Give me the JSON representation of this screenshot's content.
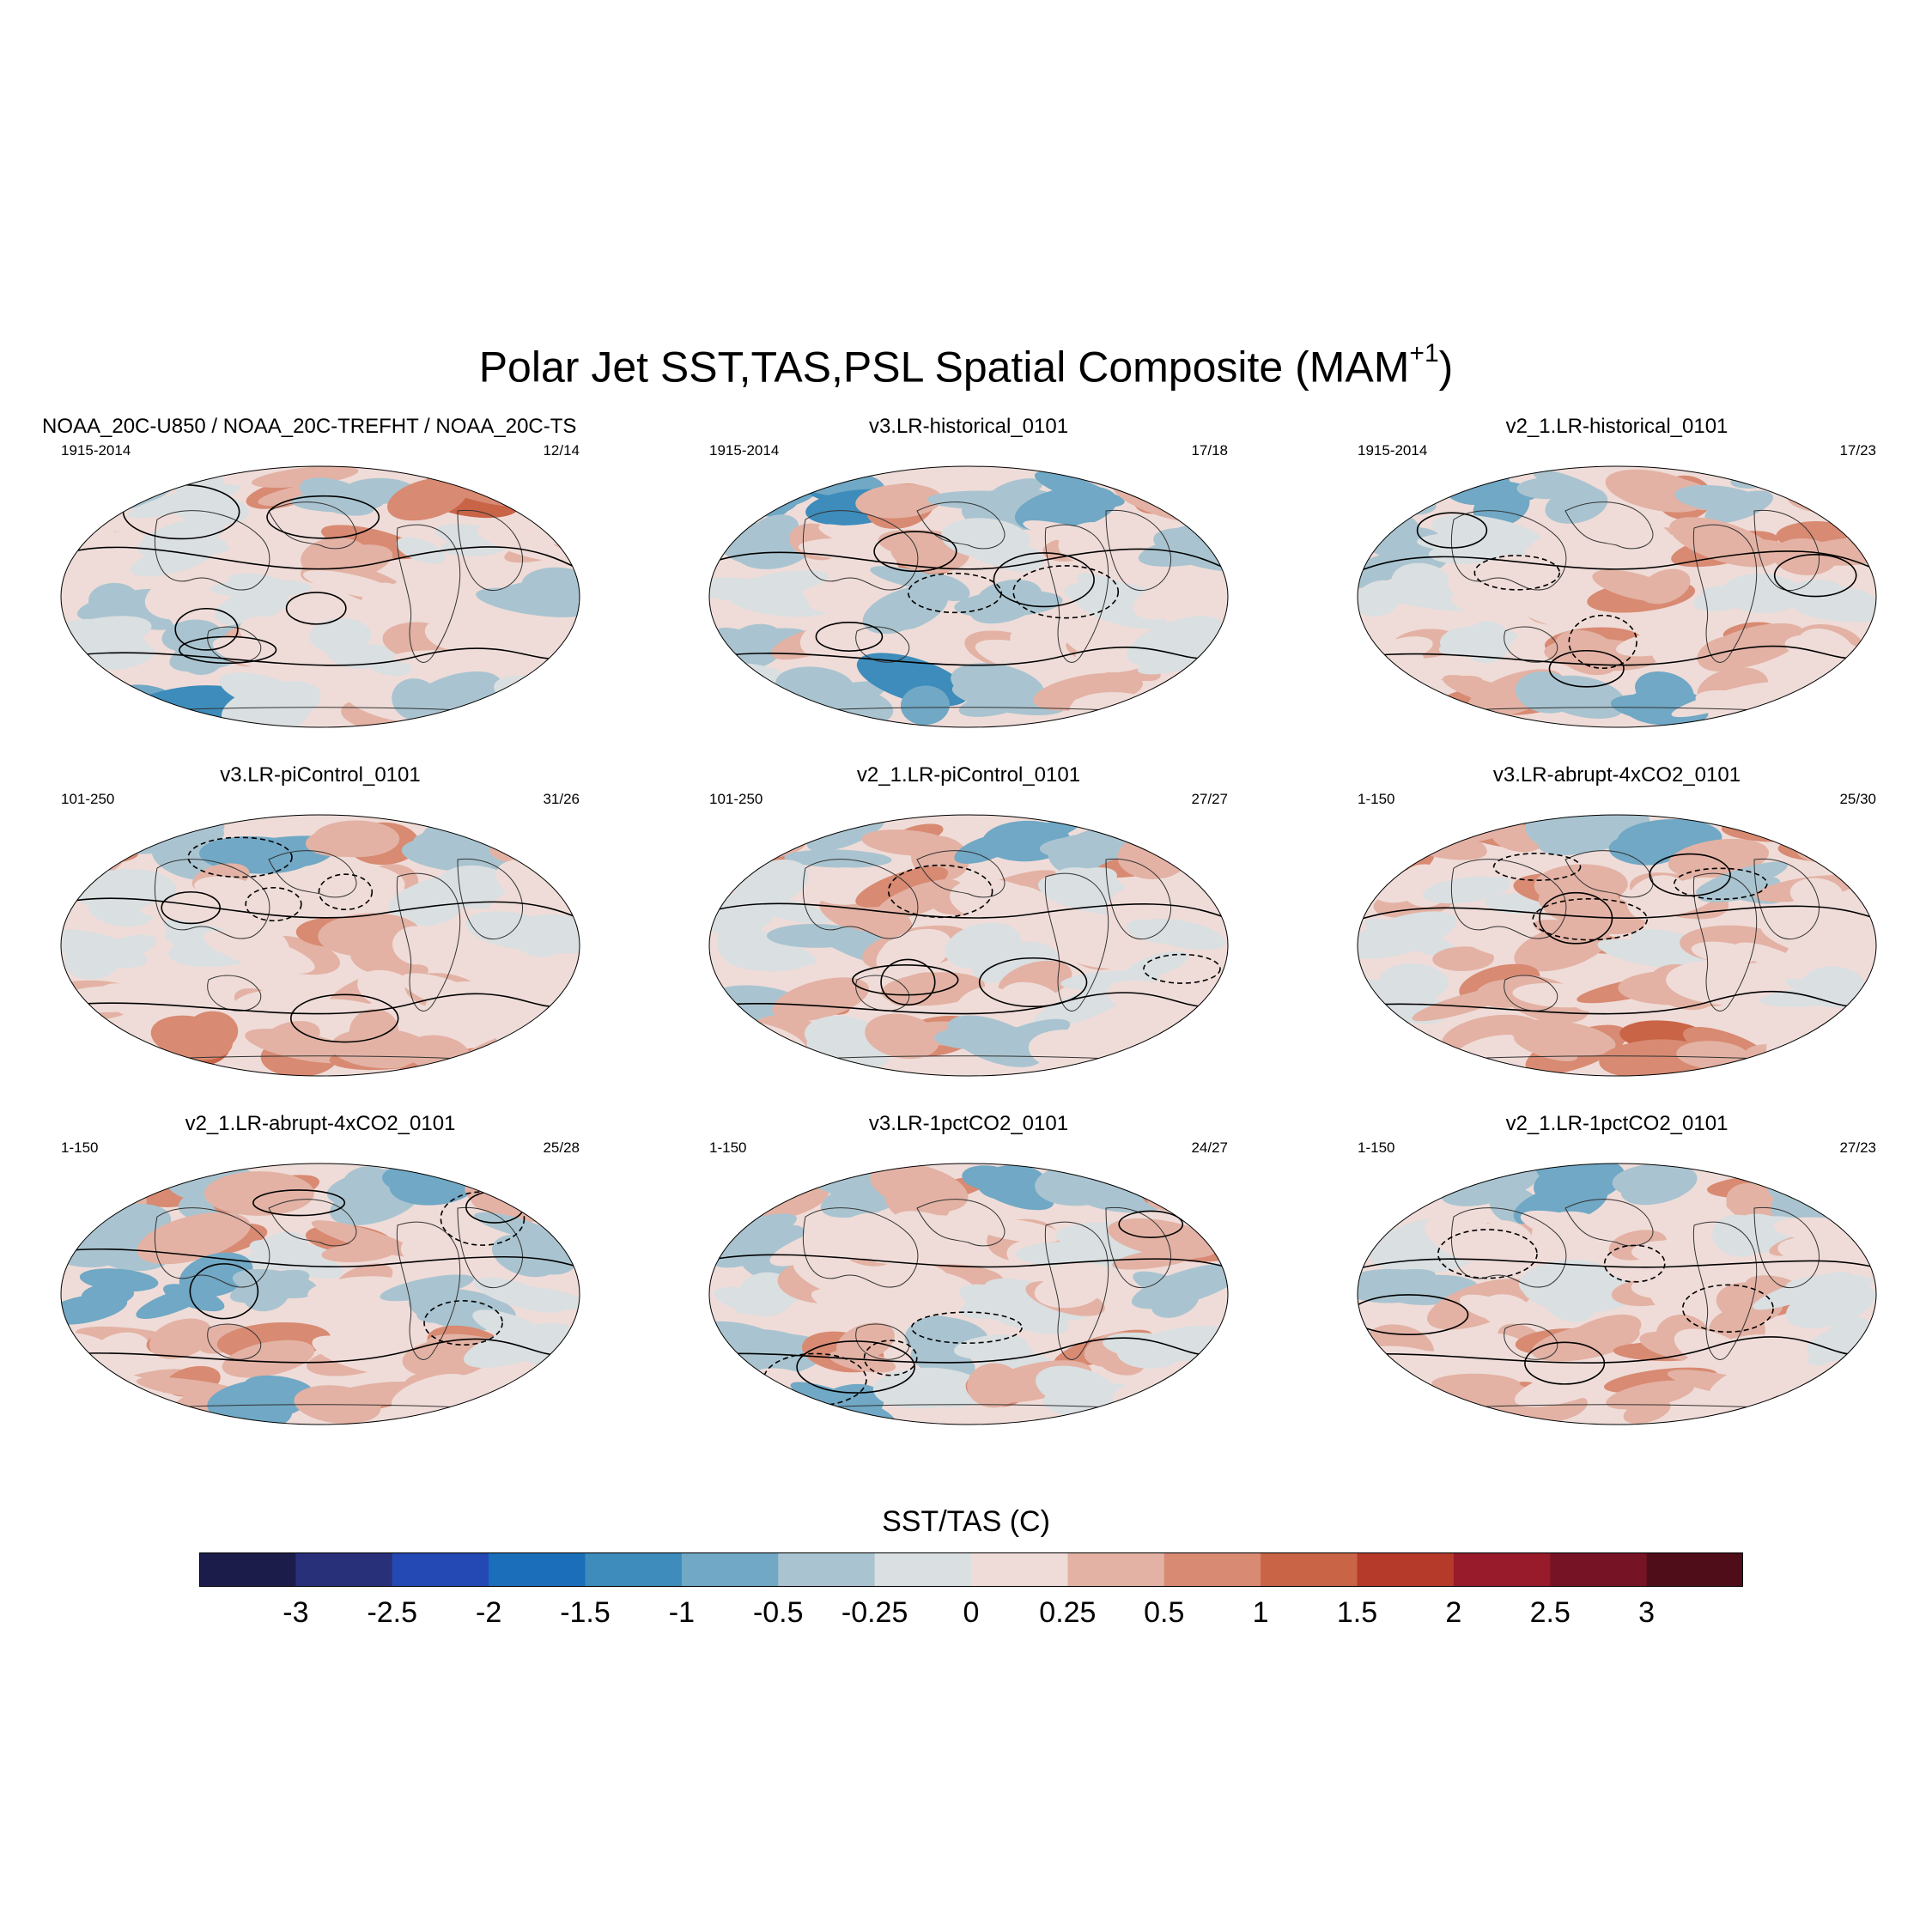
{
  "figure": {
    "title": "Polar Jet SST,TAS,PSL Spatial Composite (MAM",
    "title_sup": "+1",
    "title_close": ")"
  },
  "chart_data": {
    "type": "heatmap",
    "projection": "Robinson (global maps)",
    "variable": "SST/TAS (C)",
    "contour_variable": "PSL",
    "panels": [
      {
        "title": "NOAA_20C-U850 / NOAA_20C-TREFHT / NOAA_20C-TS",
        "period": "1915-2014",
        "count": "12/14",
        "pattern": [
          [
            -0.5,
            -0.25,
            0.5,
            -0.5,
            1,
            -1
          ],
          [
            0.25,
            -0.25,
            0,
            0.5,
            -0.25,
            0.25
          ],
          [
            -0.5,
            0,
            -0.25,
            0.25,
            0,
            -0.5
          ],
          [
            -0.25,
            -0.5,
            0.25,
            -0.25,
            0.25,
            0
          ],
          [
            -1,
            -1.5,
            -0.25,
            0.25,
            -0.5,
            -0.25
          ]
        ]
      },
      {
        "title": "v3.LR-historical_0101",
        "period": "1915-2014",
        "count": "17/18",
        "pattern": [
          [
            -1,
            -1.5,
            0.5,
            -0.5,
            -1,
            0.5
          ],
          [
            -0.5,
            0.25,
            0.5,
            -0.25,
            0.25,
            -0.5
          ],
          [
            -0.25,
            0,
            -0.5,
            -0.5,
            -0.25,
            0
          ],
          [
            -0.5,
            0.25,
            0,
            0.25,
            0.25,
            -0.25
          ],
          [
            -0.25,
            -0.5,
            -1.5,
            -0.5,
            0.25,
            0
          ]
        ]
      },
      {
        "title": "v2_1.LR-historical_0101",
        "period": "1915-2014",
        "count": "17/23",
        "pattern": [
          [
            -0.5,
            -1,
            -0.5,
            0.5,
            -0.5,
            0.5
          ],
          [
            -0.5,
            -0.25,
            0,
            0.25,
            0.5,
            0.5
          ],
          [
            -0.25,
            0,
            0.25,
            0.5,
            -0.25,
            -0.25
          ],
          [
            0.25,
            -0.25,
            0.5,
            0.25,
            0.5,
            0.25
          ],
          [
            0.25,
            0.5,
            -0.5,
            -1,
            0.25,
            0
          ]
        ]
      },
      {
        "title": "v3.LR-piControl_0101",
        "period": "101-250",
        "count": "31/26",
        "pattern": [
          [
            0.5,
            -0.5,
            -1,
            0.5,
            -0.5,
            0.5
          ],
          [
            -0.25,
            0.25,
            0,
            0.25,
            -0.25,
            0
          ],
          [
            -0.25,
            -0.25,
            0.25,
            0.5,
            0,
            -0.25
          ],
          [
            0.25,
            0,
            0.25,
            0.25,
            0.25,
            0
          ],
          [
            0.5,
            1,
            0.5,
            0.5,
            0.5,
            0.25
          ]
        ]
      },
      {
        "title": "v2_1.LR-piControl_0101",
        "period": "101-250",
        "count": "27/27",
        "pattern": [
          [
            0.5,
            -0.5,
            0.5,
            -1,
            -0.5,
            0.5
          ],
          [
            -0.25,
            0.25,
            0.5,
            0.25,
            -0.25,
            0
          ],
          [
            -0.25,
            -0.5,
            0.25,
            -0.25,
            0.25,
            -0.25
          ],
          [
            -0.5,
            0.5,
            0.5,
            0.25,
            -0.25,
            0
          ],
          [
            0.25,
            -0.25,
            0.5,
            -0.5,
            0.25,
            0
          ]
        ]
      },
      {
        "title": "v3.LR-abrupt-4xCO2_0101",
        "period": "1-150",
        "count": "25/30",
        "pattern": [
          [
            0.5,
            0.5,
            -0.5,
            -1,
            0.5,
            0.5
          ],
          [
            0.25,
            -0.25,
            0.5,
            0.25,
            -0.5,
            0.25
          ],
          [
            -0.25,
            0.25,
            0.5,
            -0.25,
            0.25,
            0
          ],
          [
            -0.25,
            0.5,
            0.25,
            0.5,
            0.25,
            -0.25
          ],
          [
            0.5,
            0.25,
            0.5,
            1,
            0.5,
            0
          ]
        ]
      },
      {
        "title": "v2_1.LR-abrupt-4xCO2_0101",
        "period": "1-150",
        "count": "25/28",
        "pattern": [
          [
            0.5,
            -0.5,
            0.5,
            -0.5,
            -1,
            0.5
          ],
          [
            -0.5,
            0.5,
            -0.25,
            0.5,
            0,
            -0.5
          ],
          [
            -1,
            -1,
            -0.5,
            0.25,
            -0.5,
            -0.25
          ],
          [
            0.25,
            0.5,
            0.5,
            0.25,
            0.5,
            -0.25
          ],
          [
            0.25,
            0.5,
            -1,
            0.5,
            0.25,
            0
          ]
        ]
      },
      {
        "title": "v3.LR-1pctCO2_0101",
        "period": "1-150",
        "count": "24/27",
        "pattern": [
          [
            0.5,
            -0.5,
            0.5,
            -1,
            -0.5,
            0.5
          ],
          [
            -0.5,
            0.25,
            0,
            0.25,
            -0.25,
            0.5
          ],
          [
            -0.25,
            0.25,
            0.25,
            -0.25,
            0.25,
            -0.5
          ],
          [
            -0.5,
            0.5,
            -0.5,
            -0.25,
            0.5,
            -0.25
          ],
          [
            0.25,
            -1,
            -0.25,
            0.5,
            -0.25,
            0
          ]
        ]
      },
      {
        "title": "v2_1.LR-1pctCO2_0101",
        "period": "1-150",
        "count": "27/23",
        "pattern": [
          [
            0.5,
            -0.5,
            -1,
            -0.5,
            0.5,
            -0.5
          ],
          [
            -0.25,
            0.25,
            0,
            0.25,
            -0.25,
            0.25
          ],
          [
            -0.5,
            0.25,
            -0.25,
            0.25,
            0.5,
            -0.25
          ],
          [
            0.25,
            0.25,
            0.5,
            0.5,
            0.25,
            -0.25
          ],
          [
            0.25,
            0.5,
            0.25,
            0.5,
            0.25,
            0
          ]
        ]
      }
    ],
    "colorbar": {
      "title": "SST/TAS (C)",
      "labels": [
        "-3",
        "-2.5",
        "-2",
        "-1.5",
        "-1",
        "-0.5",
        "-0.25",
        "0",
        "0.25",
        "0.5",
        "1",
        "1.5",
        "2",
        "2.5",
        "3"
      ],
      "colors": [
        "#1c1c4b",
        "#28307a",
        "#2448b4",
        "#1b6fba",
        "#3d8cbb",
        "#70a8c5",
        "#a9c4d0",
        "#dadfe1",
        "#efdcd8",
        "#e3b2a4",
        "#d88a72",
        "#c96447",
        "#b53a2a",
        "#971b2a",
        "#761425",
        "#4e0d19"
      ]
    }
  }
}
